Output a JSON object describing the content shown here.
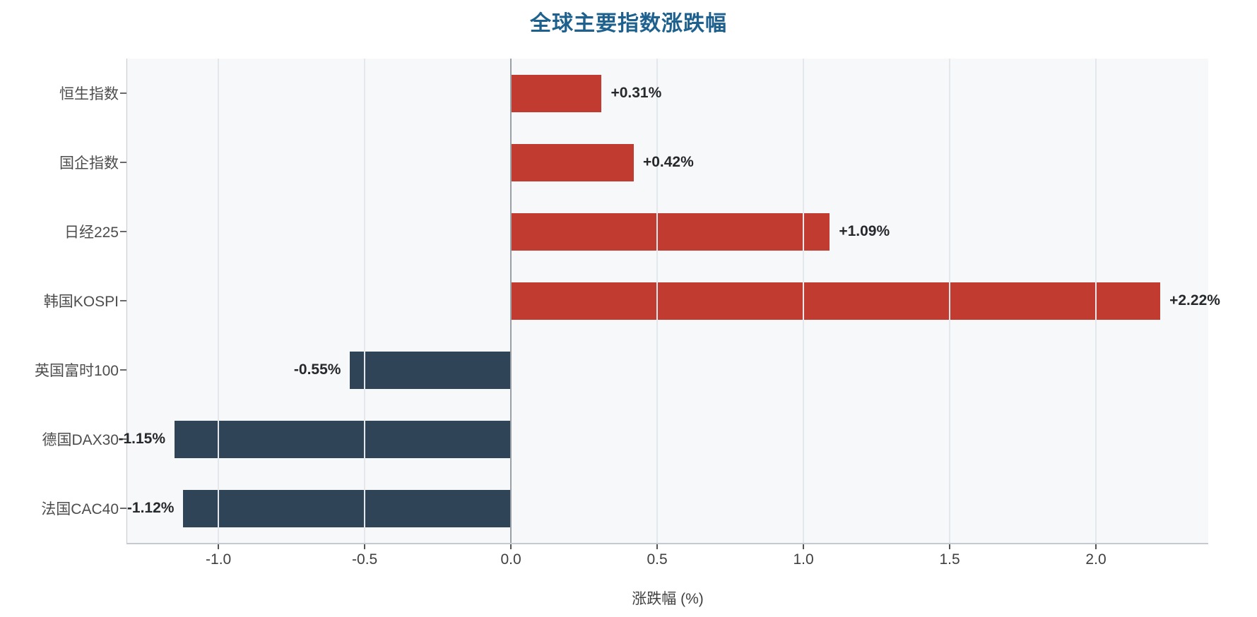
{
  "title": "全球主要指数涨跌幅",
  "chart_data": {
    "type": "bar",
    "orientation": "horizontal",
    "title": "全球主要指数涨跌幅",
    "categories": [
      "恒生指数",
      "国企指数",
      "日经225",
      "韩国KOSPI",
      "英国富时100",
      "德国DAX30",
      "法国CAC40"
    ],
    "values": [
      0.31,
      0.42,
      1.09,
      2.22,
      -0.55,
      -1.15,
      -1.12
    ],
    "value_labels": [
      "+0.31%",
      "+0.42%",
      "+1.09%",
      "+2.22%",
      "-0.55%",
      "-1.15%",
      "-1.12%"
    ],
    "xlabel": "涨跌幅 (%)",
    "ylabel": "",
    "xlim": [
      -1.312,
      2.384
    ],
    "xticks": [
      -1.0,
      -0.5,
      0.0,
      0.5,
      1.0,
      1.5,
      2.0
    ],
    "xtick_labels": [
      "-1.0",
      "-0.5",
      "0.0",
      "0.5",
      "1.0",
      "1.5",
      "2.0"
    ],
    "grid": true,
    "legend": false,
    "colors": {
      "positive": "#c23b31",
      "negative": "#2f4456",
      "title": "#1e618e",
      "plot_background": "#f7f8fa",
      "gridline": "#e4e7eb",
      "zero_line": "#9aa0a6"
    }
  }
}
